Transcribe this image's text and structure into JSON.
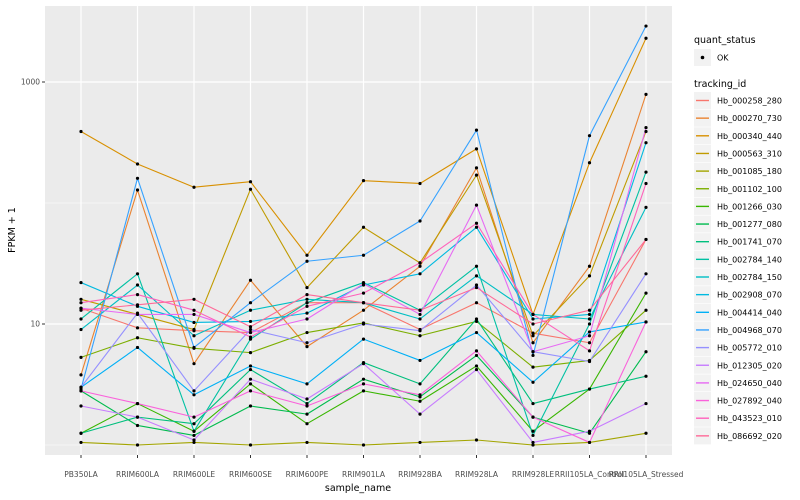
{
  "figure": {
    "background": "#FFFFFF",
    "panel_background": "#EBEBEB",
    "grid_color": "#FFFFFF",
    "axis_text_color": "#4D4D4D",
    "point_color": "#000000",
    "legend_key_background": "#F2F2F2"
  },
  "axes": {
    "x_title": "sample_name",
    "y_title": "FPKM + 1",
    "y_tick_labels": [
      "1000",
      "10"
    ]
  },
  "legend": {
    "quant_status_title": "quant_status",
    "quant_status_items": [
      {
        "label": "OK",
        "marker": "point"
      }
    ],
    "tracking_id_title": "tracking_id"
  },
  "chart_data": {
    "type": "line",
    "x_type": "categorical",
    "y_scale": "log10",
    "xlabel": "sample_name",
    "ylabel": "FPKM + 1",
    "ylim": [
      1,
      4000
    ],
    "y_major_breaks": [
      10,
      1000
    ],
    "y_minor_breaks": [
      1,
      100
    ],
    "grid": true,
    "legend_position": "right",
    "marker": {
      "shape": "circle",
      "color": "#000000"
    },
    "categories": [
      "PB350LA",
      "RRIM600LA",
      "RRIM600LE",
      "RRIM600SE",
      "RRIM600PE",
      "RRIM901LA",
      "RRIM928BA",
      "RRIM928LA",
      "RRIM928LE",
      "RRII105LA_Control",
      "RRII105LA_Stressed"
    ],
    "series": [
      {
        "name": "Hb_000258_280",
        "color": "#F8766D",
        "values": [
          13.5,
          9.3,
          8.8,
          8.5,
          15,
          15,
          9,
          15,
          8.4,
          7,
          50
        ]
      },
      {
        "name": "Hb_000270_730",
        "color": "#EA8331",
        "values": [
          3.8,
          128,
          4.7,
          23,
          6.5,
          13,
          30,
          195,
          7,
          30,
          790
        ]
      },
      {
        "name": "Hb_000340_440",
        "color": "#D89000",
        "values": [
          390,
          210,
          135,
          150,
          37,
          153,
          145,
          280,
          12,
          215,
          2300
        ]
      },
      {
        "name": "Hb_000563_310",
        "color": "#C09B00",
        "values": [
          16,
          12,
          9,
          130,
          20,
          63,
          32,
          170,
          8,
          25,
          390
        ]
      },
      {
        "name": "Hb_001085_180",
        "color": "#A3A500",
        "values": [
          1.05,
          1.0,
          1.05,
          1.0,
          1.05,
          1.0,
          1.05,
          1.1,
          1.0,
          1.05,
          1.25
        ]
      },
      {
        "name": "Hb_001102_100",
        "color": "#7CAE00",
        "values": [
          5.3,
          7.7,
          6.3,
          5.8,
          8.5,
          10.2,
          8,
          10.5,
          4.4,
          5,
          13
        ]
      },
      {
        "name": "Hb_001266_030",
        "color": "#39B600",
        "values": [
          1.25,
          2.2,
          1.3,
          3.2,
          1.5,
          2.8,
          2.3,
          4.5,
          1.3,
          2.9,
          18
        ]
      },
      {
        "name": "Hb_001277_080",
        "color": "#00BB4E",
        "values": [
          2.8,
          1.45,
          1.2,
          2.1,
          1.8,
          3.5,
          2.5,
          5.5,
          1.7,
          1.25,
          5.9
        ]
      },
      {
        "name": "Hb_001741_070",
        "color": "#00BF7D",
        "values": [
          1.25,
          1.7,
          1.5,
          4.2,
          2.2,
          4.8,
          3.2,
          11,
          2.2,
          2.9,
          3.7
        ]
      },
      {
        "name": "Hb_002784_140",
        "color": "#00C1A3",
        "values": [
          11,
          26,
          1.3,
          7.5,
          15,
          22,
          13,
          30,
          1.2,
          10,
          180
        ]
      },
      {
        "name": "Hb_002784_150",
        "color": "#00BFC4",
        "values": [
          9,
          21,
          8,
          13,
          16,
          15,
          11,
          25,
          12,
          11,
          92
        ]
      },
      {
        "name": "Hb_002908_070",
        "color": "#00BAE0",
        "values": [
          22,
          14,
          10.3,
          10.5,
          12.3,
          21,
          26,
          63,
          11,
          12,
          315
        ]
      },
      {
        "name": "Hb_004414_040",
        "color": "#00B0F6",
        "values": [
          3.0,
          6.4,
          2.6,
          4.5,
          3.2,
          7.5,
          5,
          8.5,
          3.3,
          8.6,
          10.4
        ]
      },
      {
        "name": "Hb_004968_070",
        "color": "#35A2FF",
        "values": [
          2.9,
          160,
          6.4,
          15,
          33,
          37,
          71,
          400,
          5.5,
          360,
          2900
        ]
      },
      {
        "name": "Hb_005772_010",
        "color": "#9590FF",
        "values": [
          3.0,
          12.3,
          2.8,
          9,
          7,
          10,
          8.8,
          21,
          5.9,
          4.9,
          26
        ]
      },
      {
        "name": "Hb_012305_020",
        "color": "#C77CFF",
        "values": [
          2.1,
          1.7,
          1.1,
          3.5,
          2.4,
          4.7,
          1.8,
          4.2,
          1.05,
          1.3,
          2.2
        ]
      },
      {
        "name": "Hb_024650_040",
        "color": "#E76BF3",
        "values": [
          13.5,
          12,
          12,
          8.5,
          11,
          21.5,
          12,
          96,
          5.9,
          8,
          420
        ]
      },
      {
        "name": "Hb_027892_040",
        "color": "#FA62DB",
        "values": [
          2.8,
          2.2,
          1.7,
          2.8,
          2.1,
          3.2,
          2.6,
          6,
          1.7,
          1.05,
          10.4
        ]
      },
      {
        "name": "Hb_043523_010",
        "color": "#FF62BC",
        "values": [
          15,
          17.5,
          13,
          7.8,
          14,
          18,
          32,
          68,
          12,
          6,
          145
        ]
      },
      {
        "name": "Hb_086692_020",
        "color": "#FF6A98",
        "values": [
          13,
          14.4,
          16,
          9.5,
          17.5,
          15,
          13,
          20,
          10,
          13,
          50
        ]
      }
    ]
  }
}
